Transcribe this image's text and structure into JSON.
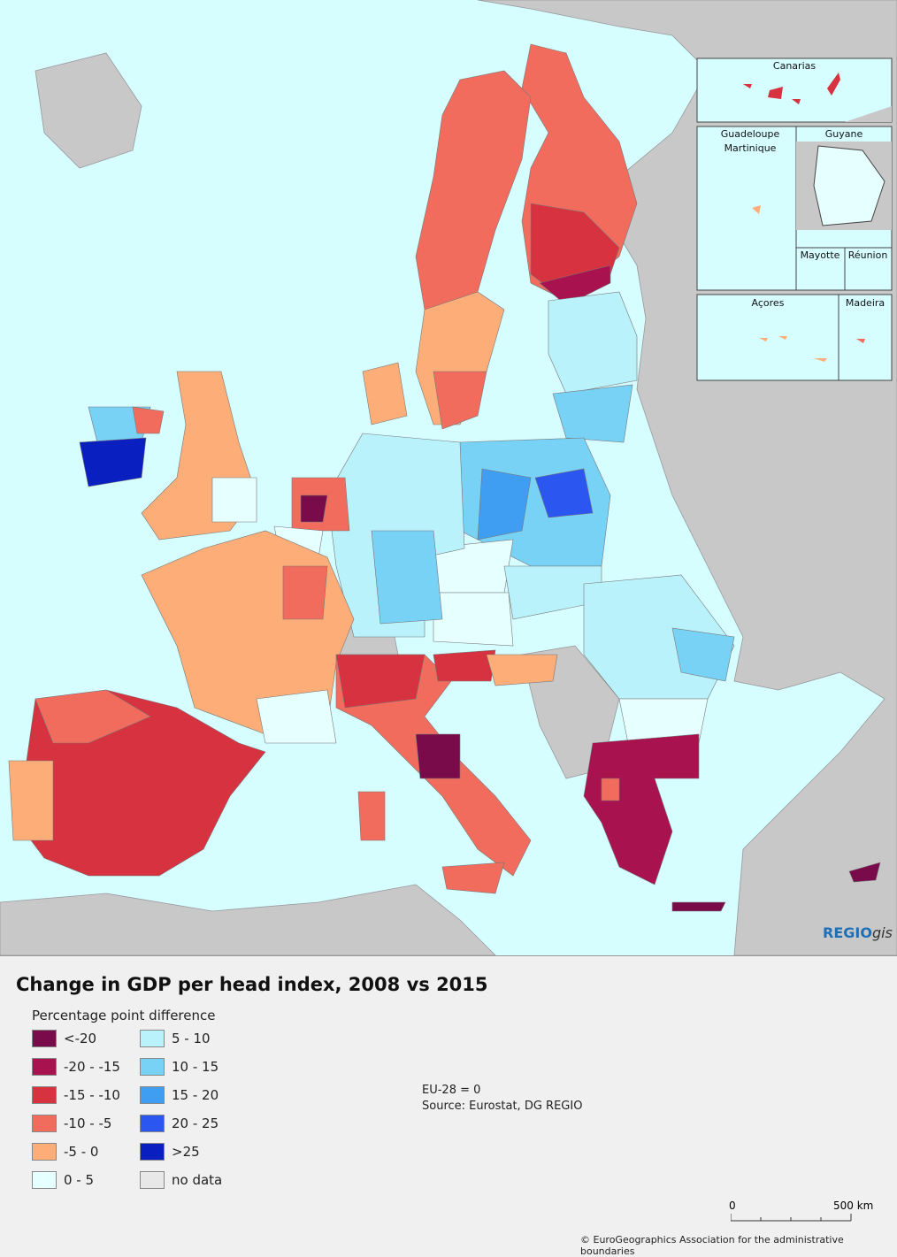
{
  "title": "Change in GDP per head index, 2008 vs 2015",
  "legend_title": "Percentage point difference",
  "legend": [
    {
      "label": "<-20",
      "color": "#7a0b4a"
    },
    {
      "label": "-20 - -15",
      "color": "#a8124e"
    },
    {
      "label": "-15 - -10",
      "color": "#d6323f"
    },
    {
      "label": "-10 - -5",
      "color": "#f26c5e"
    },
    {
      "label": "-5 - 0",
      "color": "#fdae78"
    },
    {
      "label": "0 - 5",
      "color": "#e6ffff"
    },
    {
      "label": "5 - 10",
      "color": "#b9f2fb"
    },
    {
      "label": "10 - 15",
      "color": "#78d2f6"
    },
    {
      "label": "15 - 20",
      "color": "#3f9ef2"
    },
    {
      "label": "20 - 25",
      "color": "#2b56f0"
    },
    {
      "label": ">25",
      "color": "#0a1fbf"
    },
    {
      "label": "no data",
      "color": "#e8e8e8"
    }
  ],
  "notes": {
    "baseline": "EU-28 = 0",
    "source": "Source: Eurostat, DG REGIO"
  },
  "scale": {
    "start": "0",
    "end": "500",
    "unit": "km"
  },
  "copyright": "© EuroGeographics Association for the administrative boundaries",
  "logo": {
    "brand": "REGIO",
    "suffix": "gis"
  },
  "insets": {
    "canarias": "Canarias",
    "guadeloupe": "Guadeloupe",
    "martinique": "Martinique",
    "guyane": "Guyane",
    "mayotte": "Mayotte",
    "reunion": "Réunion",
    "acores": "Açores",
    "madeira": "Madeira"
  },
  "colors": {
    "sea": "#d6fdff",
    "land_nodata": "#c8c8c8"
  }
}
